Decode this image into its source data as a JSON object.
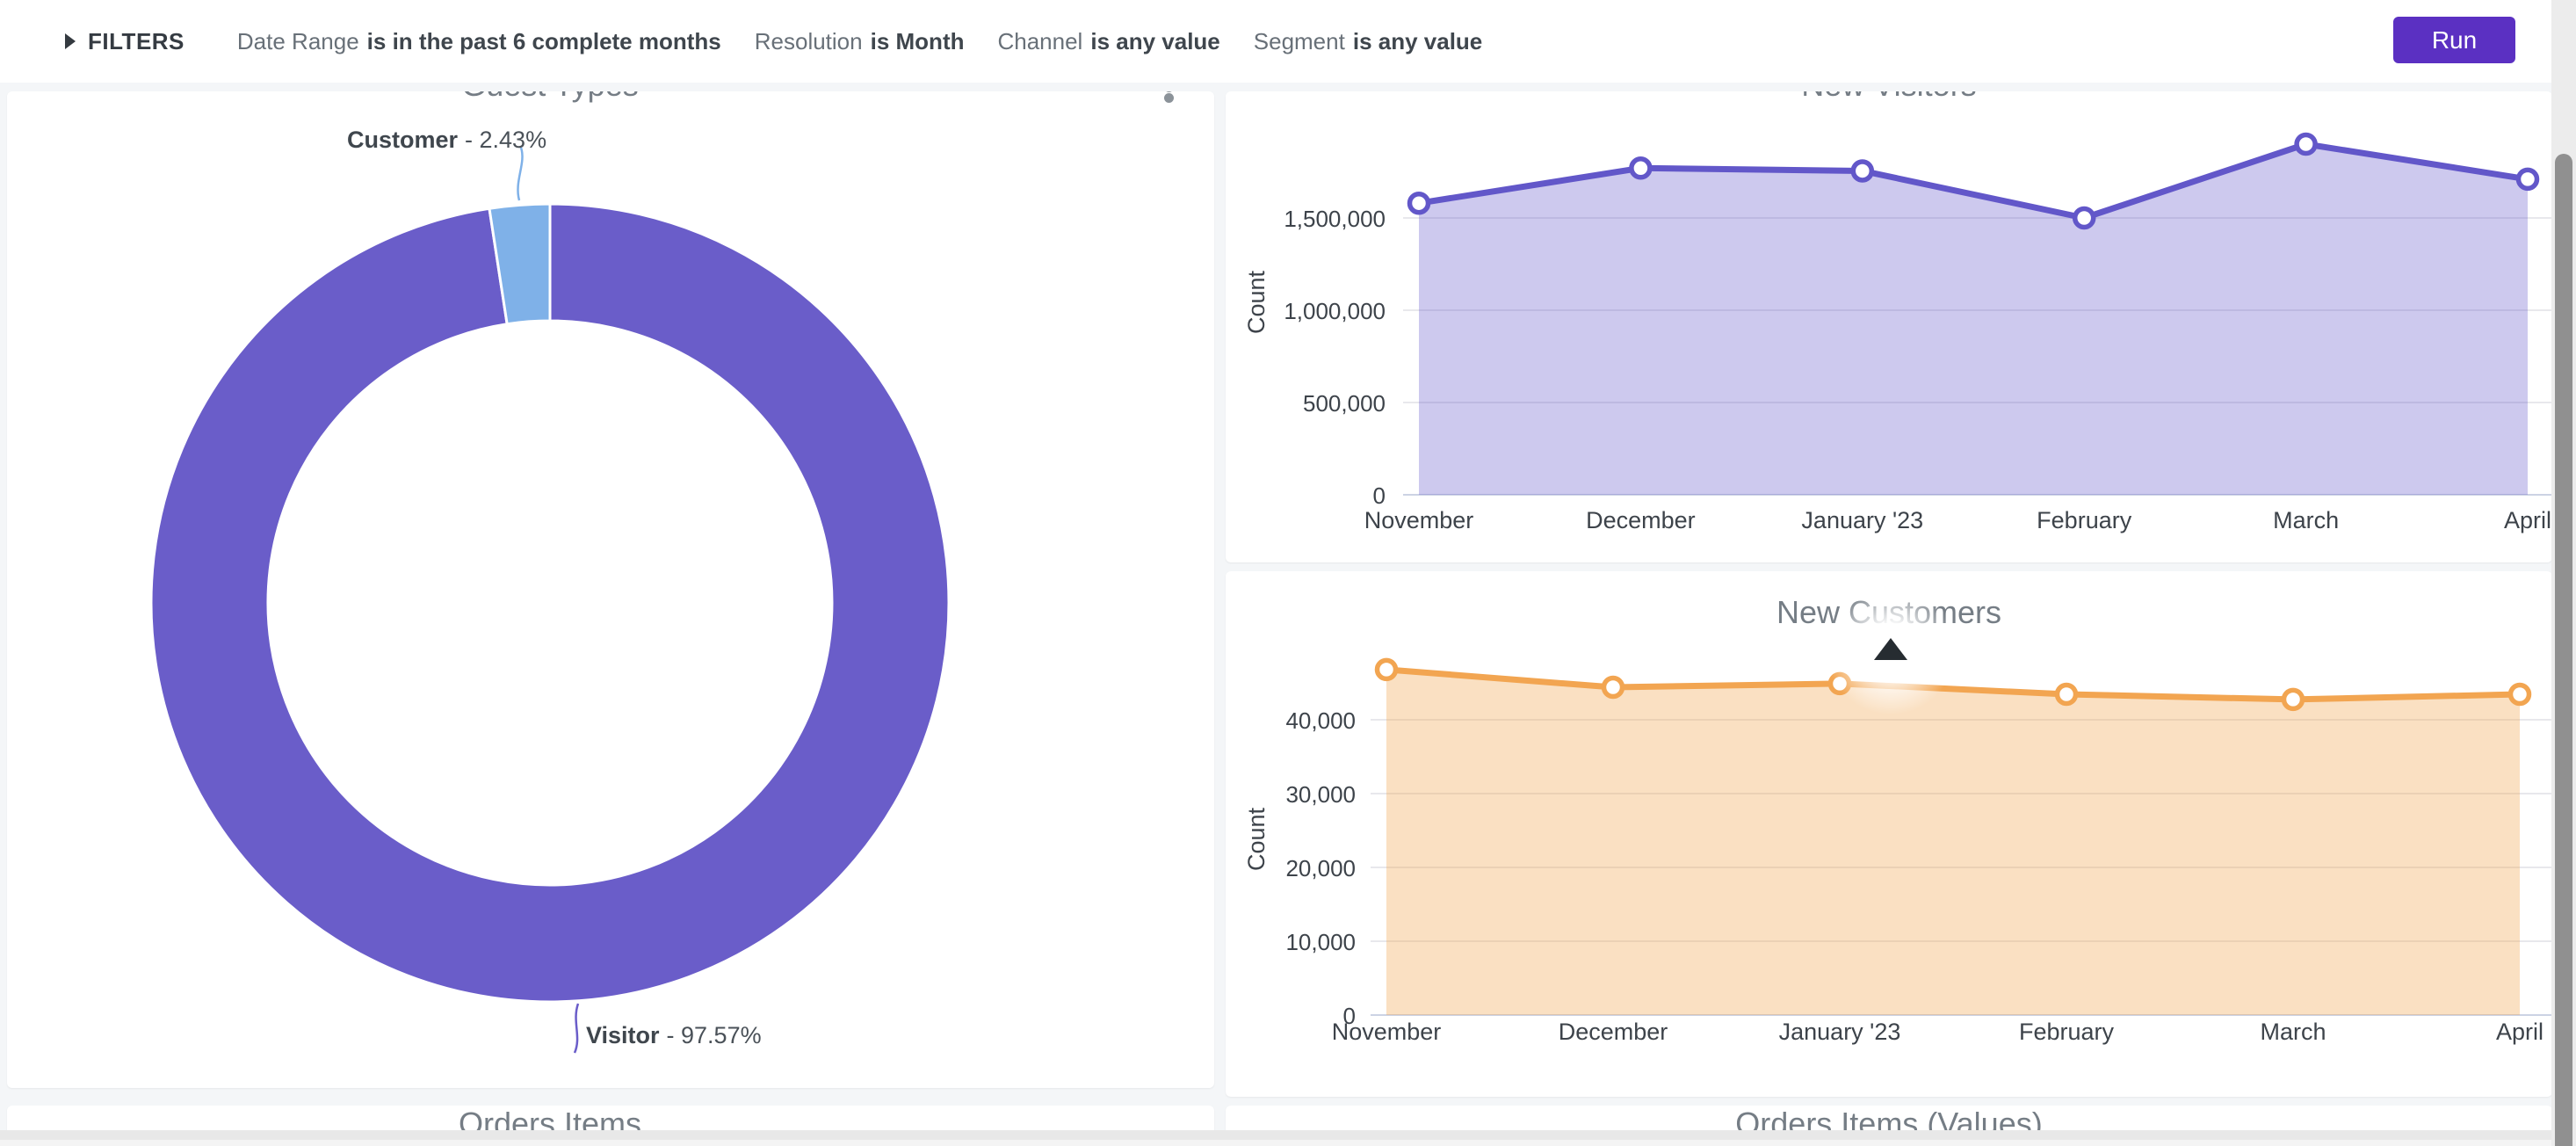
{
  "filter_bar": {
    "title": "FILTERS",
    "filters": [
      {
        "label": "Date Range",
        "condition": "is in the past 6 complete months"
      },
      {
        "label": "Resolution",
        "condition": "is Month"
      },
      {
        "label": "Channel",
        "condition": "is any value"
      },
      {
        "label": "Segment",
        "condition": "is any value"
      }
    ],
    "run_button": "Run"
  },
  "icons": {
    "filters_expander": "right-triangle",
    "panel_menu": "kebab-vertical",
    "cursor": "solid-up-triangle"
  },
  "colors": {
    "run_button": "#5b30c2",
    "visitor_purple": "#6a5dc9",
    "customer_blue": "#7fb1e8",
    "visitors_line": "#6257c9",
    "visitors_fill": "rgba(98,87,201,0.32)",
    "customers_line": "#f2a551",
    "customers_fill": "rgba(242,165,81,0.35)",
    "grid": "#e8e8ec",
    "zero_line": "#ccd3e4",
    "axis_text": "#3d434a",
    "title_text": "#757d85"
  },
  "chart_data": [
    {
      "id": "guest_types",
      "type": "pie",
      "donut": true,
      "title": "Guest Types",
      "labels": [
        "Customer",
        "Visitor"
      ],
      "values": [
        2.43,
        97.57
      ],
      "colors": [
        "#7fb1e8",
        "#6a5dc9"
      ],
      "callouts": [
        {
          "label": "Customer",
          "value_text": "- 2.43%"
        },
        {
          "label": "Visitor",
          "value_text": "- 97.57%"
        }
      ]
    },
    {
      "id": "new_visitors",
      "type": "area",
      "title": "New Visitors",
      "categories": [
        "November",
        "December",
        "January '23",
        "February",
        "March",
        "April"
      ],
      "series": [
        {
          "name": "Count",
          "values": [
            1580000,
            1770000,
            1755000,
            1500000,
            1900000,
            1710000
          ]
        }
      ],
      "ylabel": "Count",
      "yticks": [
        0,
        500000,
        1000000,
        1500000
      ],
      "ylim": [
        0,
        2190000
      ],
      "grid": true,
      "legend": "none"
    },
    {
      "id": "new_customers",
      "type": "area",
      "title": "New Customers",
      "categories": [
        "November",
        "December",
        "January '23",
        "February",
        "March",
        "April"
      ],
      "series": [
        {
          "name": "Count",
          "values": [
            46800,
            44400,
            44900,
            43450,
            42750,
            43450
          ]
        }
      ],
      "ylabel": "Count",
      "yticks": [
        0,
        10000,
        20000,
        30000,
        40000
      ],
      "ylim": [
        0,
        60000
      ],
      "grid": true,
      "legend": "none"
    }
  ],
  "bottom_row": {
    "left_title": "Orders Items",
    "right_title": "Orders Items (Values)"
  }
}
